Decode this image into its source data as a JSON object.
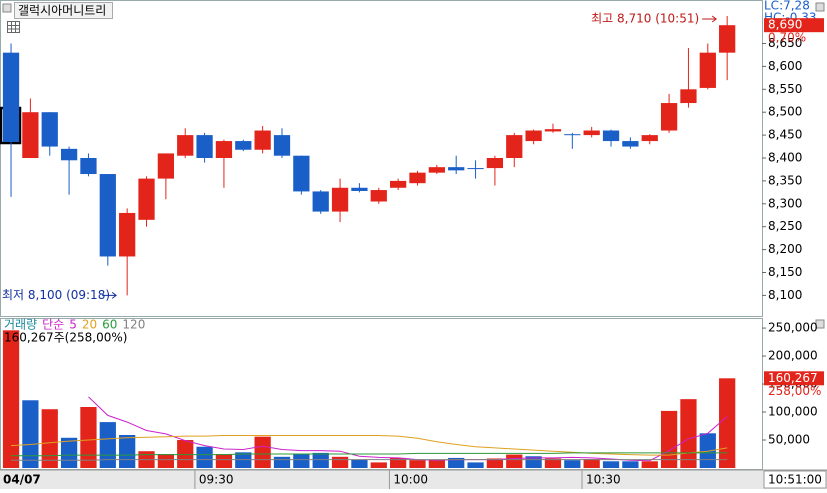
{
  "chart_data": [
    {
      "type": "candlestick",
      "title": "갤럭시아머니트리",
      "open": [
        8630,
        8400,
        8500,
        8420,
        8400,
        8365,
        8185,
        8265,
        8355,
        8405,
        8450,
        8400,
        8437,
        8418,
        8450,
        8405,
        8327,
        8283,
        8335,
        8305,
        8335,
        8345,
        8368,
        8380,
        8378,
        8378,
        8400,
        8437,
        8458,
        8452,
        8450,
        8460,
        8437,
        8437,
        8460,
        8520,
        8553,
        8630
      ],
      "high": [
        8650,
        8530,
        8500,
        8425,
        8410,
        8365,
        8290,
        8360,
        8410,
        8465,
        8455,
        8440,
        8440,
        8470,
        8465,
        8405,
        8330,
        8355,
        8345,
        8335,
        8355,
        8372,
        8385,
        8405,
        8395,
        8405,
        8455,
        8462,
        8475,
        8455,
        8468,
        8462,
        8445,
        8452,
        8540,
        8640,
        8650,
        8710
      ],
      "low": [
        8315,
        8400,
        8405,
        8320,
        8360,
        8165,
        8100,
        8250,
        8310,
        8400,
        8390,
        8335,
        8415,
        8410,
        8400,
        8320,
        8278,
        8260,
        8325,
        8300,
        8330,
        8340,
        8365,
        8365,
        8355,
        8340,
        8380,
        8430,
        8455,
        8420,
        8445,
        8425,
        8420,
        8430,
        8455,
        8510,
        8550,
        8570
      ],
      "close": [
        8435,
        8500,
        8425,
        8395,
        8365,
        8185,
        8280,
        8355,
        8410,
        8450,
        8400,
        8437,
        8418,
        8460,
        8405,
        8327,
        8283,
        8335,
        8328,
        8330,
        8350,
        8368,
        8380,
        8373,
        8376,
        8400,
        8450,
        8460,
        8463,
        8450,
        8460,
        8437,
        8425,
        8450,
        8520,
        8550,
        8630,
        8690
      ],
      "up_color": "#e3241b",
      "down_color": "#1a5fc8",
      "xlim": [
        -0.57,
        38.8
      ],
      "ylim": [
        8055,
        8745
      ],
      "yticks": [
        {
          "value": 8100,
          "label": "8,100"
        },
        {
          "value": 8150,
          "label": "8,150"
        },
        {
          "value": 8200,
          "label": "8,200"
        },
        {
          "value": 8250,
          "label": "8,250"
        },
        {
          "value": 8300,
          "label": "8,300"
        },
        {
          "value": 8350,
          "label": "8,350"
        },
        {
          "value": 8400,
          "label": "8,400"
        },
        {
          "value": 8450,
          "label": "8,450"
        },
        {
          "value": 8500,
          "label": "8,500"
        },
        {
          "value": 8550,
          "label": "8,550"
        },
        {
          "value": 8600,
          "label": "8,600"
        },
        {
          "value": 8650,
          "label": "8,650"
        }
      ],
      "high_annotation": "최고 8,710 (10:51)",
      "low_annotation": "최저 8,100 (09:18)",
      "lc_label": "LC:7,28",
      "hc_label": "HC:-0,33",
      "last_price": {
        "value": 8690,
        "label": "8,690"
      },
      "change_label": "0,70%"
    },
    {
      "type": "bar",
      "title": "거래량",
      "ma_label": "단순",
      "values": [
        246000,
        121000,
        105000,
        54000,
        109000,
        82000,
        59000,
        30000,
        25000,
        50000,
        38000,
        25000,
        28000,
        56000,
        20000,
        25000,
        27000,
        20000,
        15000,
        10000,
        18000,
        14000,
        15000,
        18000,
        10000,
        17000,
        24000,
        21000,
        17000,
        14000,
        16000,
        12000,
        12000,
        12000,
        102000,
        123000,
        62000,
        160267
      ],
      "colors": [
        "#e3241b",
        "#1a5fc8",
        "#e3241b",
        "#1a5fc8",
        "#e3241b",
        "#1a5fc8",
        "#1a5fc8",
        "#e3241b",
        "#e3241b",
        "#e3241b",
        "#1a5fc8",
        "#e3241b",
        "#1a5fc8",
        "#e3241b",
        "#1a5fc8",
        "#1a5fc8",
        "#1a5fc8",
        "#e3241b",
        "#1a5fc8",
        "#e3241b",
        "#e3241b",
        "#e3241b",
        "#e3241b",
        "#1a5fc8",
        "#1a5fc8",
        "#e3241b",
        "#e3241b",
        "#1a5fc8",
        "#e3241b",
        "#1a5fc8",
        "#e3241b",
        "#1a5fc8",
        "#1a5fc8",
        "#e3241b",
        "#e3241b",
        "#e3241b",
        "#1a5fc8",
        "#e3241b"
      ],
      "series": [
        {
          "name": "5",
          "color": "#cc22cc",
          "values": [
            null,
            null,
            null,
            null,
            127000,
            94000,
            82000,
            67000,
            61000,
            49000,
            40000,
            34000,
            33000,
            39000,
            33000,
            31000,
            31000,
            30000,
            21000,
            19000,
            18000,
            15000,
            14000,
            15000,
            15000,
            15000,
            17000,
            18000,
            18000,
            19000,
            18000,
            16000,
            14000,
            13000,
            31000,
            52000,
            62000,
            92000
          ]
        },
        {
          "name": "20",
          "color": "#e0a020",
          "values": [
            40000,
            42000,
            45000,
            48000,
            50000,
            52000,
            54000,
            55000,
            56000,
            57000,
            57000,
            58000,
            58000,
            58000,
            58000,
            58000,
            58000,
            58000,
            58000,
            58000,
            57000,
            53000,
            47000,
            42000,
            38000,
            36000,
            34000,
            32000,
            30000,
            28000,
            26000,
            25000,
            24000,
            23000,
            23000,
            27000,
            30000,
            36000
          ]
        },
        {
          "name": "60",
          "color": "#2a9a3a",
          "values": [
            22000,
            22000,
            22000,
            23000,
            23000,
            23000,
            23000,
            24000,
            24000,
            24000,
            24000,
            24000,
            25000,
            25000,
            25000,
            25000,
            25000,
            25000,
            25000,
            25000,
            25000,
            26000,
            26000,
            26000,
            26000,
            26000,
            26000,
            26000,
            26000,
            27000,
            27000,
            27000,
            27000,
            27000,
            27000,
            27000,
            27000,
            27000
          ]
        },
        {
          "name": "120",
          "color": "#808080",
          "values": [
            14000,
            14000,
            14000,
            14000,
            14000,
            15000,
            15000,
            15000,
            15000,
            15000,
            15000,
            15000,
            15000,
            15000,
            15000,
            15000,
            15000,
            15000,
            15000,
            15000,
            15000,
            15000,
            15000,
            15000,
            15000,
            15000,
            15000,
            15000,
            15000,
            15000,
            15000,
            15000,
            15000,
            15000,
            15000,
            15000,
            15000,
            15000
          ]
        }
      ],
      "summary_label": "160,267주(258,00%)",
      "last_volume": {
        "value": 160267,
        "label": "160,267"
      },
      "ratio_label": "258,00%",
      "ylim": [
        0,
        268000
      ],
      "yticks": [
        {
          "value": 50000,
          "label": "50,000"
        },
        {
          "value": 100000,
          "label": "100,000"
        },
        {
          "value": 150000,
          "label": "150,000"
        },
        {
          "value": 200000,
          "label": "200,000"
        },
        {
          "value": 250000,
          "label": "250,000"
        }
      ],
      "date_label": "04/07",
      "xticks": [
        {
          "value": 9.5,
          "label": "09:30"
        },
        {
          "value": 19.55,
          "label": "10:00"
        },
        {
          "value": 29.5,
          "label": "10:30"
        }
      ],
      "cursor_label": "10:51:00"
    }
  ]
}
